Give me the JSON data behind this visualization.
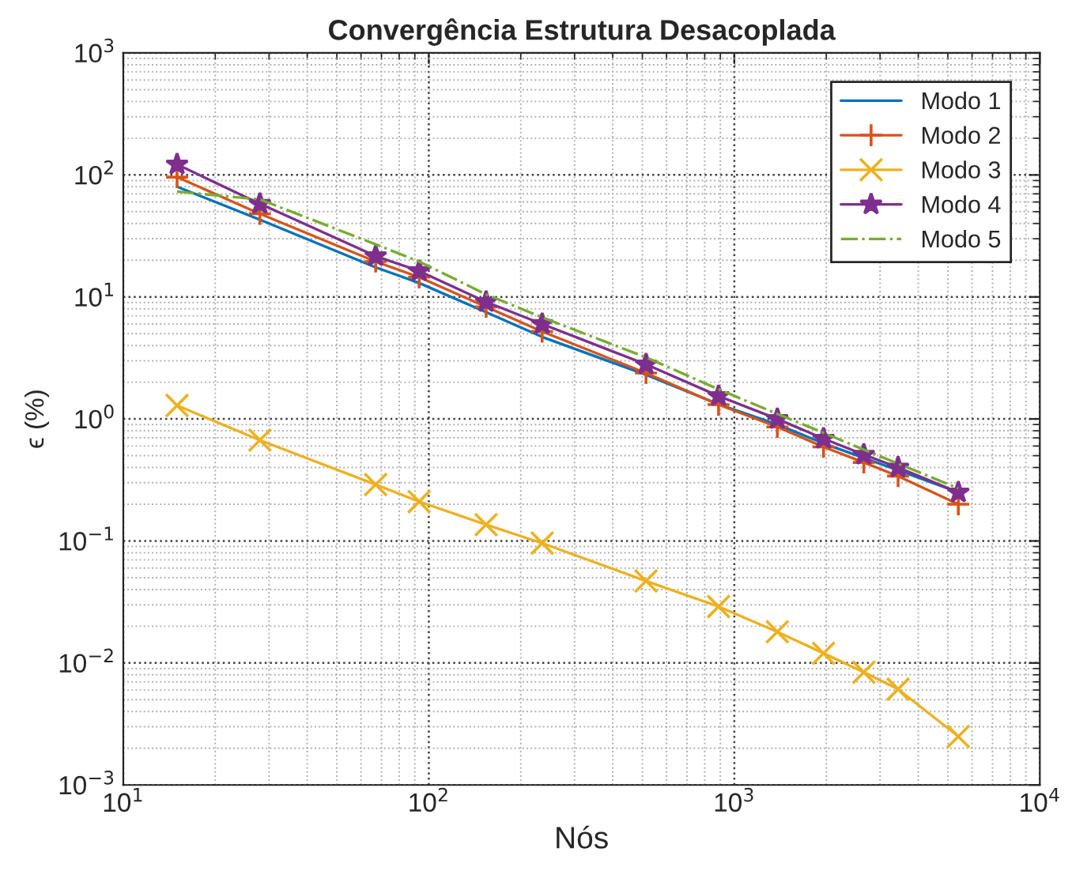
{
  "chart_data": {
    "type": "line",
    "title": "Convergência Estrutura Desacoplada",
    "xlabel": "Nós",
    "ylabel": "ϵ (%)",
    "x": [
      15,
      28,
      67,
      93,
      154,
      235,
      514,
      888,
      1383,
      1959,
      2654,
      3436,
      5410
    ],
    "series": [
      {
        "name": "Modo 1",
        "color": "#0072bd",
        "marker": "none",
        "line_style": "solid",
        "values": [
          80,
          43,
          17.5,
          13,
          7.5,
          4.7,
          2.3,
          1.32,
          0.9,
          0.63,
          0.48,
          0.38,
          0.25
        ]
      },
      {
        "name": "Modo 2",
        "color": "#d95319",
        "marker": "plus",
        "line_style": "solid",
        "values": [
          96,
          48,
          19.5,
          14.5,
          8.3,
          5.2,
          2.38,
          1.31,
          0.86,
          0.59,
          0.44,
          0.34,
          0.2
        ]
      },
      {
        "name": "Modo 3",
        "color": "#edb120",
        "marker": "cross",
        "line_style": "solid",
        "values": [
          1.29,
          0.67,
          0.29,
          0.21,
          0.136,
          0.096,
          0.047,
          0.029,
          0.018,
          0.012,
          0.0084,
          0.0061,
          0.0025
        ]
      },
      {
        "name": "Modo 4",
        "color": "#7e2f8e",
        "marker": "star",
        "line_style": "solid",
        "values": [
          122,
          58,
          21.6,
          16.3,
          9.1,
          6.0,
          2.8,
          1.54,
          1.0,
          0.69,
          0.51,
          0.4,
          0.25
        ]
      },
      {
        "name": "Modo 5",
        "color": "#77ac30",
        "marker": "none",
        "line_style": "dashdot",
        "values": [
          73,
          63,
          27,
          19.5,
          10.5,
          6.8,
          3.2,
          1.75,
          1.1,
          0.77,
          0.56,
          0.43,
          0.27
        ]
      }
    ],
    "log": "xy",
    "xlim": [
      10,
      10000
    ],
    "ylim": [
      0.001,
      1000
    ],
    "xticks": [
      {
        "value": 10,
        "label": "10$^{1}$"
      },
      {
        "value": 100,
        "label": "10$^{2}$"
      },
      {
        "value": 1000,
        "label": "10$^{3}$"
      },
      {
        "value": 10000,
        "label": "10$^{4}$"
      }
    ],
    "yticks": [
      {
        "value": 0.001,
        "label": "10$^{−3}$"
      },
      {
        "value": 0.01,
        "label": "10$^{−2}$"
      },
      {
        "value": 0.1,
        "label": "10$^{−1}$"
      },
      {
        "value": 1,
        "label": "10$^{0}$"
      },
      {
        "value": 10,
        "label": "10$^{1}$"
      },
      {
        "value": 100,
        "label": "10$^{2}$"
      },
      {
        "value": 1000,
        "label": "10$^{3}$"
      }
    ],
    "grid": true,
    "legend": "top right"
  }
}
